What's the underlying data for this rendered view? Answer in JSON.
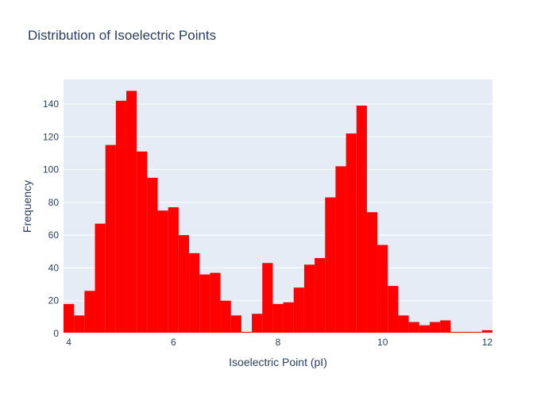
{
  "chart_data": {
    "type": "bar",
    "title": "Distribution of Isoelectric Points",
    "xlabel": "Isoelectric Point (pI)",
    "ylabel": "Frequency",
    "xlim": [
      3.9,
      12.1
    ],
    "ylim": [
      0,
      155
    ],
    "bin_width": 0.2,
    "bin_start": 3.9,
    "x_ticks": [
      4,
      6,
      8,
      10,
      12
    ],
    "y_ticks": [
      0,
      20,
      40,
      60,
      80,
      100,
      120,
      140
    ],
    "series": [
      {
        "color": "#ff0000",
        "x": [
          4.0,
          4.2,
          4.4,
          4.6,
          4.8,
          5.0,
          5.2,
          5.4,
          5.6,
          5.8,
          6.0,
          6.2,
          6.4,
          6.6,
          6.8,
          7.0,
          7.2,
          7.4,
          7.6,
          7.8,
          8.0,
          8.2,
          8.4,
          8.6,
          8.8,
          9.0,
          9.2,
          9.4,
          9.6,
          9.8,
          10.0,
          10.2,
          10.4,
          10.6,
          10.8,
          11.0,
          11.2,
          11.4,
          11.6,
          11.8,
          12.0
        ],
        "values": [
          18,
          11,
          26,
          67,
          115,
          142,
          148,
          111,
          95,
          75,
          77,
          60,
          49,
          36,
          37,
          20,
          11,
          1,
          12,
          43,
          18,
          19,
          28,
          42,
          46,
          83,
          102,
          122,
          139,
          74,
          54,
          29,
          11,
          7,
          5,
          7,
          8,
          1,
          1,
          1,
          2
        ]
      }
    ],
    "grid": true,
    "legend": "none",
    "plot_background": "#e5ecf6"
  }
}
